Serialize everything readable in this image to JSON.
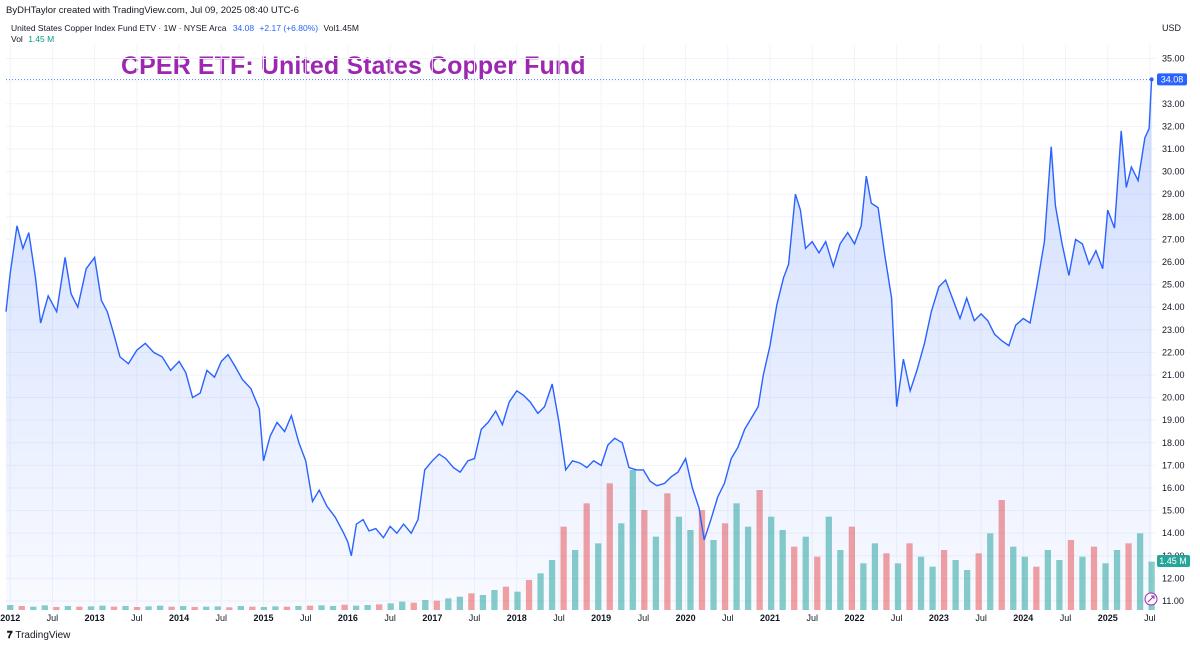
{
  "header": {
    "credit": "ByDHTaylor created with TradingView.com, Jul 09, 2025 08:40 UTC-6",
    "symbol_text": "United States Copper Index Fund ETV · 1W · NYSE Arca",
    "last": "34.08",
    "change": "+2.17 (+6.80%)",
    "vol_inline": "Vol1.45M",
    "vol_label": "Vol",
    "vol_value": "1.45 M"
  },
  "currency": "USD",
  "brand": "TradingView",
  "colors": {
    "line": "#2962ff",
    "title": "#9c27b0",
    "vol_up": "#26a69a",
    "vol_down": "#ef5350",
    "grid": "#f0f3fa"
  },
  "chart_data": {
    "type": "area",
    "title": "CPER ETF: United States Copper Fund",
    "ylabel": "USD",
    "ylim": [
      10.6,
      35.6
    ],
    "yticks": [
      "35.00",
      "34.00",
      "33.00",
      "32.00",
      "31.00",
      "30.00",
      "29.00",
      "28.00",
      "27.00",
      "26.00",
      "25.00",
      "24.00",
      "23.00",
      "22.00",
      "21.00",
      "20.00",
      "19.00",
      "18.00",
      "17.00",
      "16.00",
      "15.00",
      "14.00",
      "13.00",
      "12.00",
      "11.00"
    ],
    "x_ticks": [
      {
        "label": "2012",
        "t": 2012.0,
        "year": true
      },
      {
        "label": "Jul",
        "t": 2012.5
      },
      {
        "label": "2013",
        "t": 2013.0,
        "year": true
      },
      {
        "label": "Jul",
        "t": 2013.5
      },
      {
        "label": "2014",
        "t": 2014.0,
        "year": true
      },
      {
        "label": "Jul",
        "t": 2014.5
      },
      {
        "label": "2015",
        "t": 2015.0,
        "year": true
      },
      {
        "label": "Jul",
        "t": 2015.5
      },
      {
        "label": "2016",
        "t": 2016.0,
        "year": true
      },
      {
        "label": "Jul",
        "t": 2016.5
      },
      {
        "label": "2017",
        "t": 2017.0,
        "year": true
      },
      {
        "label": "Jul",
        "t": 2017.5
      },
      {
        "label": "2018",
        "t": 2018.0,
        "year": true
      },
      {
        "label": "Jul",
        "t": 2018.5
      },
      {
        "label": "2019",
        "t": 2019.0,
        "year": true
      },
      {
        "label": "Jul",
        "t": 2019.5
      },
      {
        "label": "2020",
        "t": 2020.0,
        "year": true
      },
      {
        "label": "Jul",
        "t": 2020.5
      },
      {
        "label": "2021",
        "t": 2021.0,
        "year": true
      },
      {
        "label": "Jul",
        "t": 2021.5
      },
      {
        "label": "2022",
        "t": 2022.0,
        "year": true
      },
      {
        "label": "Jul",
        "t": 2022.5
      },
      {
        "label": "2023",
        "t": 2023.0,
        "year": true
      },
      {
        "label": "Jul",
        "t": 2023.5
      },
      {
        "label": "2024",
        "t": 2024.0,
        "year": true
      },
      {
        "label": "Jul",
        "t": 2024.5
      },
      {
        "label": "2025",
        "t": 2025.0,
        "year": true
      },
      {
        "label": "Jul",
        "t": 2025.5
      }
    ],
    "x_range": [
      2011.95,
      2025.56
    ],
    "price_series": {
      "name": "CPER",
      "points": [
        [
          2011.95,
          23.8
        ],
        [
          2012.0,
          25.5
        ],
        [
          2012.08,
          27.6
        ],
        [
          2012.15,
          26.6
        ],
        [
          2012.22,
          27.3
        ],
        [
          2012.3,
          25.3
        ],
        [
          2012.36,
          23.3
        ],
        [
          2012.45,
          24.5
        ],
        [
          2012.55,
          23.8
        ],
        [
          2012.65,
          26.2
        ],
        [
          2012.72,
          24.6
        ],
        [
          2012.8,
          24.0
        ],
        [
          2012.9,
          25.7
        ],
        [
          2013.0,
          26.2
        ],
        [
          2013.08,
          24.3
        ],
        [
          2013.15,
          23.8
        ],
        [
          2013.22,
          22.9
        ],
        [
          2013.3,
          21.8
        ],
        [
          2013.4,
          21.5
        ],
        [
          2013.5,
          22.1
        ],
        [
          2013.6,
          22.4
        ],
        [
          2013.7,
          22.0
        ],
        [
          2013.8,
          21.8
        ],
        [
          2013.9,
          21.2
        ],
        [
          2014.0,
          21.6
        ],
        [
          2014.08,
          21.1
        ],
        [
          2014.16,
          20.0
        ],
        [
          2014.25,
          20.2
        ],
        [
          2014.33,
          21.2
        ],
        [
          2014.42,
          20.9
        ],
        [
          2014.5,
          21.6
        ],
        [
          2014.58,
          21.9
        ],
        [
          2014.66,
          21.4
        ],
        [
          2014.75,
          20.8
        ],
        [
          2014.85,
          20.4
        ],
        [
          2014.95,
          19.5
        ],
        [
          2015.0,
          17.2
        ],
        [
          2015.08,
          18.3
        ],
        [
          2015.16,
          18.9
        ],
        [
          2015.25,
          18.5
        ],
        [
          2015.33,
          19.2
        ],
        [
          2015.42,
          18.0
        ],
        [
          2015.5,
          17.2
        ],
        [
          2015.58,
          15.4
        ],
        [
          2015.66,
          15.9
        ],
        [
          2015.75,
          15.2
        ],
        [
          2015.85,
          14.7
        ],
        [
          2015.95,
          14.0
        ],
        [
          2016.0,
          13.6
        ],
        [
          2016.04,
          13.0
        ],
        [
          2016.1,
          14.4
        ],
        [
          2016.18,
          14.6
        ],
        [
          2016.25,
          14.1
        ],
        [
          2016.33,
          14.2
        ],
        [
          2016.42,
          13.8
        ],
        [
          2016.5,
          14.3
        ],
        [
          2016.58,
          14.0
        ],
        [
          2016.66,
          14.4
        ],
        [
          2016.75,
          14.0
        ],
        [
          2016.83,
          14.6
        ],
        [
          2016.91,
          16.8
        ],
        [
          2017.0,
          17.2
        ],
        [
          2017.08,
          17.5
        ],
        [
          2017.16,
          17.3
        ],
        [
          2017.25,
          16.9
        ],
        [
          2017.33,
          16.7
        ],
        [
          2017.42,
          17.2
        ],
        [
          2017.5,
          17.3
        ],
        [
          2017.58,
          18.6
        ],
        [
          2017.66,
          18.9
        ],
        [
          2017.75,
          19.4
        ],
        [
          2017.83,
          18.8
        ],
        [
          2017.91,
          19.8
        ],
        [
          2018.0,
          20.3
        ],
        [
          2018.08,
          20.1
        ],
        [
          2018.16,
          19.8
        ],
        [
          2018.25,
          19.3
        ],
        [
          2018.33,
          19.6
        ],
        [
          2018.42,
          20.6
        ],
        [
          2018.5,
          18.9
        ],
        [
          2018.58,
          16.8
        ],
        [
          2018.66,
          17.2
        ],
        [
          2018.75,
          17.1
        ],
        [
          2018.83,
          16.9
        ],
        [
          2018.91,
          17.2
        ],
        [
          2019.0,
          17.0
        ],
        [
          2019.08,
          17.9
        ],
        [
          2019.16,
          18.2
        ],
        [
          2019.25,
          18.0
        ],
        [
          2019.33,
          16.9
        ],
        [
          2019.42,
          16.8
        ],
        [
          2019.5,
          16.8
        ],
        [
          2019.58,
          16.3
        ],
        [
          2019.66,
          16.1
        ],
        [
          2019.75,
          16.2
        ],
        [
          2019.83,
          16.5
        ],
        [
          2019.91,
          16.7
        ],
        [
          2020.0,
          17.3
        ],
        [
          2020.08,
          16.0
        ],
        [
          2020.16,
          15.1
        ],
        [
          2020.22,
          13.7
        ],
        [
          2020.3,
          14.6
        ],
        [
          2020.38,
          15.6
        ],
        [
          2020.46,
          16.2
        ],
        [
          2020.54,
          17.3
        ],
        [
          2020.62,
          17.8
        ],
        [
          2020.7,
          18.6
        ],
        [
          2020.78,
          19.1
        ],
        [
          2020.86,
          19.6
        ],
        [
          2020.92,
          21.0
        ],
        [
          2021.0,
          22.3
        ],
        [
          2021.08,
          24.1
        ],
        [
          2021.16,
          25.3
        ],
        [
          2021.22,
          25.9
        ],
        [
          2021.3,
          29.0
        ],
        [
          2021.36,
          28.3
        ],
        [
          2021.42,
          26.6
        ],
        [
          2021.5,
          26.9
        ],
        [
          2021.58,
          26.4
        ],
        [
          2021.66,
          26.9
        ],
        [
          2021.75,
          25.8
        ],
        [
          2021.83,
          26.8
        ],
        [
          2021.92,
          27.3
        ],
        [
          2022.0,
          26.8
        ],
        [
          2022.08,
          27.6
        ],
        [
          2022.14,
          29.8
        ],
        [
          2022.2,
          28.6
        ],
        [
          2022.28,
          28.4
        ],
        [
          2022.36,
          26.3
        ],
        [
          2022.44,
          24.4
        ],
        [
          2022.5,
          19.6
        ],
        [
          2022.58,
          21.7
        ],
        [
          2022.66,
          20.3
        ],
        [
          2022.74,
          21.2
        ],
        [
          2022.83,
          22.4
        ],
        [
          2022.91,
          23.8
        ],
        [
          2023.0,
          24.9
        ],
        [
          2023.08,
          25.2
        ],
        [
          2023.16,
          24.4
        ],
        [
          2023.25,
          23.5
        ],
        [
          2023.33,
          24.4
        ],
        [
          2023.42,
          23.4
        ],
        [
          2023.5,
          23.7
        ],
        [
          2023.58,
          23.4
        ],
        [
          2023.66,
          22.8
        ],
        [
          2023.75,
          22.5
        ],
        [
          2023.83,
          22.3
        ],
        [
          2023.91,
          23.2
        ],
        [
          2024.0,
          23.5
        ],
        [
          2024.08,
          23.3
        ],
        [
          2024.16,
          24.9
        ],
        [
          2024.25,
          26.9
        ],
        [
          2024.33,
          31.1
        ],
        [
          2024.38,
          28.5
        ],
        [
          2024.46,
          26.8
        ],
        [
          2024.54,
          25.4
        ],
        [
          2024.62,
          27.0
        ],
        [
          2024.7,
          26.8
        ],
        [
          2024.78,
          25.9
        ],
        [
          2024.86,
          26.5
        ],
        [
          2024.94,
          25.7
        ],
        [
          2025.0,
          28.3
        ],
        [
          2025.08,
          27.5
        ],
        [
          2025.16,
          31.8
        ],
        [
          2025.22,
          29.3
        ],
        [
          2025.28,
          30.2
        ],
        [
          2025.36,
          29.6
        ],
        [
          2025.44,
          31.5
        ],
        [
          2025.49,
          31.9
        ],
        [
          2025.52,
          34.08
        ]
      ]
    },
    "volume_series": {
      "name": "Vol",
      "last": "1.45M",
      "values_m": [
        0.15,
        0.12,
        0.1,
        0.14,
        0.09,
        0.12,
        0.1,
        0.11,
        0.13,
        0.1,
        0.12,
        0.09,
        0.11,
        0.13,
        0.1,
        0.12,
        0.09,
        0.1,
        0.11,
        0.08,
        0.12,
        0.1,
        0.09,
        0.11,
        0.1,
        0.12,
        0.13,
        0.14,
        0.12,
        0.16,
        0.13,
        0.15,
        0.17,
        0.2,
        0.25,
        0.22,
        0.3,
        0.28,
        0.35,
        0.4,
        0.5,
        0.45,
        0.6,
        0.7,
        0.55,
        0.9,
        1.1,
        1.5,
        2.5,
        1.8,
        3.2,
        2.0,
        3.8,
        2.6,
        4.2,
        3.0,
        2.2,
        3.5,
        2.8,
        2.4,
        3.0,
        2.1,
        2.6,
        3.2,
        2.5,
        3.6,
        2.8,
        2.4,
        1.9,
        2.2,
        1.6,
        2.8,
        1.8,
        2.5,
        1.4,
        2.0,
        1.7,
        1.4,
        2.0,
        1.6,
        1.3,
        1.8,
        1.5,
        1.2,
        1.7,
        2.3,
        3.3,
        1.9,
        1.6,
        1.3,
        1.8,
        1.5,
        2.1,
        1.6,
        1.9,
        1.4,
        1.8,
        2.0,
        2.3,
        1.45
      ],
      "up": [
        true,
        false,
        true,
        true,
        false,
        true,
        false,
        true,
        true,
        false,
        true,
        false,
        true,
        true,
        false,
        true,
        false,
        true,
        true,
        false,
        true,
        false,
        true,
        true,
        false,
        true,
        false,
        true,
        true,
        false,
        true,
        true,
        false,
        true,
        true,
        false,
        true,
        false,
        true,
        true,
        false,
        true,
        true,
        false,
        true,
        false,
        true,
        true,
        false,
        true,
        false,
        true,
        false,
        true,
        true,
        false,
        true,
        false,
        true,
        true,
        false,
        true,
        false,
        true,
        true,
        false,
        true,
        true,
        false,
        true,
        false,
        true,
        true,
        false,
        true,
        true,
        false,
        true,
        false,
        true,
        true,
        false,
        true,
        true,
        false,
        true,
        false,
        true,
        true,
        false,
        true,
        true,
        false,
        true,
        false,
        true,
        true,
        false,
        true,
        true
      ]
    },
    "last_price_label": "34.08",
    "last_volume_label": "1.45 M"
  }
}
